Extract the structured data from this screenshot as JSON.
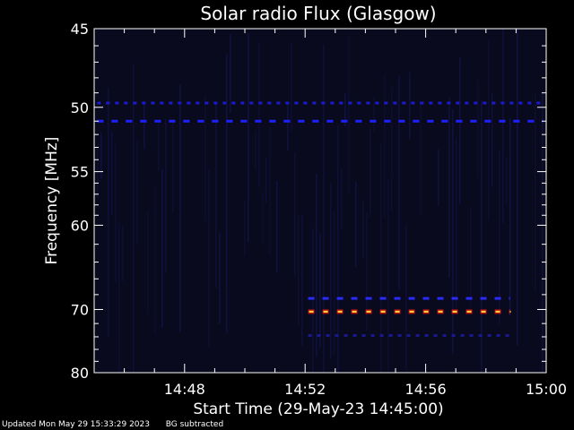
{
  "chart_data": {
    "type": "heatmap",
    "title": "Solar radio Flux (Glasgow)",
    "xlabel": "Start Time (29-May-23 14:45:00)",
    "ylabel": "Frequency [MHz]",
    "x_unit": "minutes",
    "xlim": [
      0,
      15
    ],
    "ylim": [
      45,
      80
    ],
    "y_scale": "reciprocal",
    "x_ticks": [
      {
        "value": 3,
        "label": "14:48"
      },
      {
        "value": 7,
        "label": "14:52"
      },
      {
        "value": 11,
        "label": "14:56"
      },
      {
        "value": 15,
        "label": "15:00"
      }
    ],
    "y_ticks": [
      {
        "value": 45,
        "label": "45"
      },
      {
        "value": 50,
        "label": "50"
      },
      {
        "value": 55,
        "label": "55"
      },
      {
        "value": 60,
        "label": "60"
      },
      {
        "value": 70,
        "label": "70"
      },
      {
        "value": 80,
        "label": "80"
      }
    ],
    "background_color": "#0a0a1e",
    "bands": [
      {
        "frequency": 49.7,
        "start": 0.1,
        "end": 14.9,
        "level": "low",
        "color": "#1a1ad0"
      },
      {
        "frequency": 51.0,
        "start": 0.1,
        "end": 14.9,
        "level": "medium",
        "color": "#2020ff"
      },
      {
        "frequency": 68.5,
        "start": 7.1,
        "end": 13.8,
        "level": "medium",
        "color": "#2a2aff"
      },
      {
        "frequency": 70.3,
        "start": 7.1,
        "end": 13.8,
        "level": "high",
        "color": "#ff6020"
      },
      {
        "frequency": 73.8,
        "start": 7.1,
        "end": 13.8,
        "level": "low",
        "color": "#1a1a90"
      }
    ]
  },
  "footer": {
    "updated": "Updated Mon May 29 15:33:29 2023",
    "note": "BG subtracted"
  }
}
